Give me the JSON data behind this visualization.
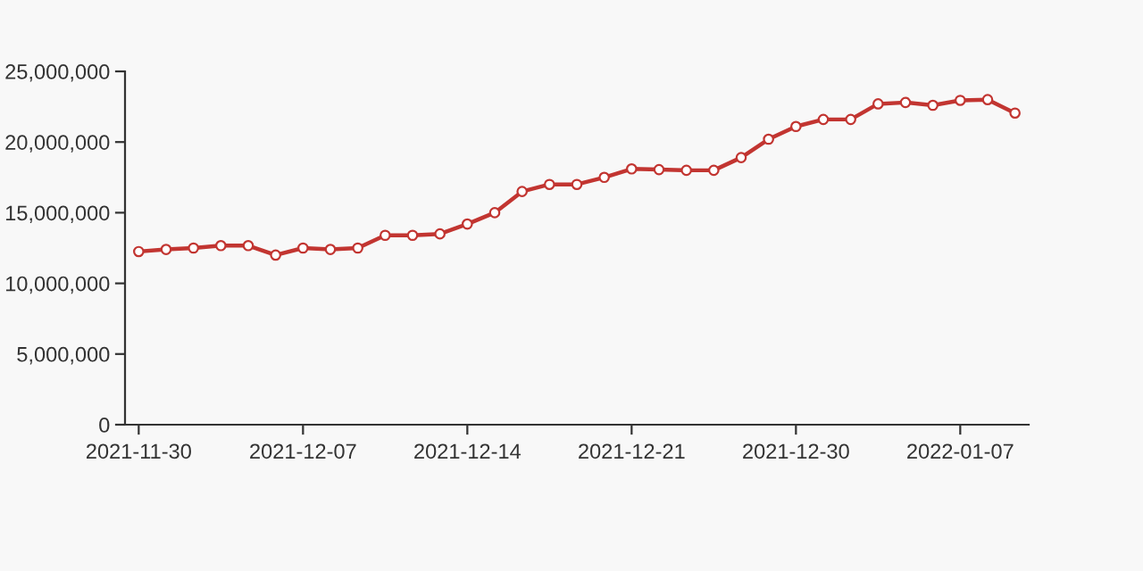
{
  "chart_data": {
    "type": "line",
    "categories": [
      "2021-11-30",
      null,
      null,
      null,
      null,
      null,
      "2021-12-07",
      null,
      null,
      null,
      null,
      null,
      "2021-12-14",
      null,
      null,
      null,
      null,
      null,
      "2021-12-21",
      null,
      null,
      null,
      null,
      null,
      "2021-12-30",
      null,
      null,
      null,
      null,
      null,
      "2022-01-07",
      null,
      null
    ],
    "series": [
      {
        "color": "#c23531",
        "values": [
          12250000,
          12400000,
          12500000,
          12670000,
          12670000,
          12000000,
          12500000,
          12400000,
          12500000,
          13400000,
          13400000,
          13500000,
          14200000,
          15000000,
          16500000,
          17000000,
          17000000,
          17500000,
          18100000,
          18050000,
          18000000,
          18000000,
          18900000,
          20200000,
          21100000,
          21600000,
          21600000,
          22700000,
          22800000,
          22600000,
          22950000,
          23000000,
          22050000
        ]
      }
    ],
    "ylim": [
      0,
      25000000
    ],
    "yticks": [
      {
        "value": 0,
        "label": "0"
      },
      {
        "value": 5000000,
        "label": "5,000,000"
      },
      {
        "value": 10000000,
        "label": "10,000,000"
      },
      {
        "value": 15000000,
        "label": "15,000,000"
      },
      {
        "value": 20000000,
        "label": "20,000,000"
      },
      {
        "value": 25000000,
        "label": "25,000,000"
      }
    ],
    "marker": "circle",
    "line_style": "solid",
    "grid": false,
    "legend": false
  }
}
